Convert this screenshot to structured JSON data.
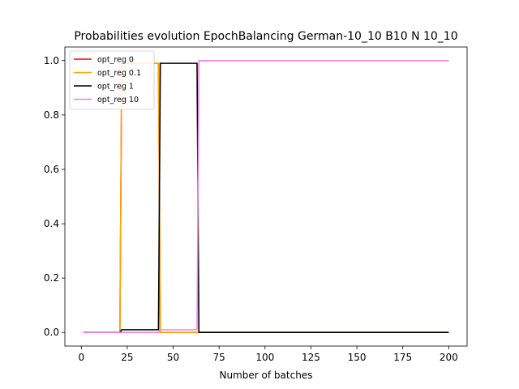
{
  "chart_data": {
    "type": "line",
    "title": "Probabilities evolution EpochBalancing German-10_10 B10 N 10_10",
    "xlabel": "Number of batches",
    "ylabel": "",
    "xlim": [
      -8.95,
      210
    ],
    "ylim": [
      -0.05,
      1.05
    ],
    "xticks": [
      0,
      25,
      50,
      75,
      100,
      125,
      150,
      175,
      200
    ],
    "yticks": [
      0.0,
      0.2,
      0.4,
      0.6,
      0.8,
      1.0
    ],
    "xtick_labels": [
      "0",
      "25",
      "50",
      "75",
      "100",
      "125",
      "150",
      "175",
      "200"
    ],
    "ytick_labels": [
      "0.0",
      "0.2",
      "0.4",
      "0.6",
      "0.8",
      "1.0"
    ],
    "legend_position": "top-left",
    "series": [
      {
        "name": "opt_reg 0",
        "color": "#ff0000",
        "x": [
          1,
          21,
          22,
          42,
          43,
          63,
          64,
          200
        ],
        "y": [
          0.0,
          0.0,
          0.99,
          0.99,
          0.0,
          0.0,
          0.0,
          0.0
        ]
      },
      {
        "name": "opt_reg 0.1",
        "color": "#ffa500",
        "x": [
          1,
          21,
          22,
          42,
          43,
          63,
          64,
          200
        ],
        "y": [
          0.0,
          0.0,
          0.99,
          0.99,
          0.0,
          0.0,
          0.0,
          0.0
        ]
      },
      {
        "name": "opt_reg 1",
        "color": "#000000",
        "x": [
          1,
          21,
          22,
          42,
          43,
          63,
          64,
          200
        ],
        "y": [
          0.0,
          0.0,
          0.01,
          0.01,
          0.99,
          0.99,
          0.0,
          0.0
        ]
      },
      {
        "name": "opt_reg 10",
        "color": "#ee82ee",
        "x": [
          1,
          21,
          22,
          42,
          43,
          63,
          64,
          200
        ],
        "y": [
          0.0,
          0.0,
          0.0,
          0.0,
          0.01,
          0.01,
          1.0,
          1.0
        ]
      }
    ]
  }
}
